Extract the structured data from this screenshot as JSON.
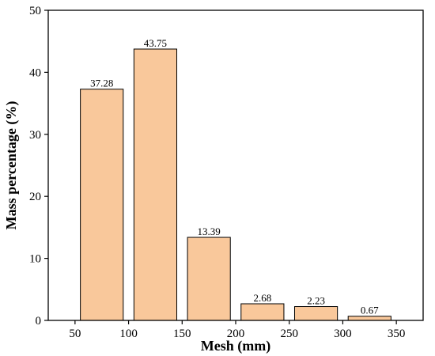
{
  "chart_data": {
    "type": "bar",
    "xlabel": "Mesh (mm)",
    "ylabel": "Mass percentage (%)",
    "xlim": [
      25,
      375
    ],
    "ylim": [
      0,
      50
    ],
    "xticks": [
      50,
      100,
      150,
      200,
      250,
      300,
      350
    ],
    "yticks": [
      0,
      10,
      20,
      30,
      40,
      50
    ],
    "bar_color": "#f9c89b",
    "bar_edge_color": "#000000",
    "bars": [
      {
        "start": 55,
        "end": 95,
        "value": 37.28,
        "label": "37.28"
      },
      {
        "start": 105,
        "end": 145,
        "value": 43.75,
        "label": "43.75"
      },
      {
        "start": 155,
        "end": 195,
        "value": 13.39,
        "label": "13.39"
      },
      {
        "start": 205,
        "end": 245,
        "value": 2.68,
        "label": "2.68"
      },
      {
        "start": 255,
        "end": 295,
        "value": 2.23,
        "label": "2.23"
      },
      {
        "start": 305,
        "end": 345,
        "value": 0.67,
        "label": "0.67"
      }
    ]
  }
}
